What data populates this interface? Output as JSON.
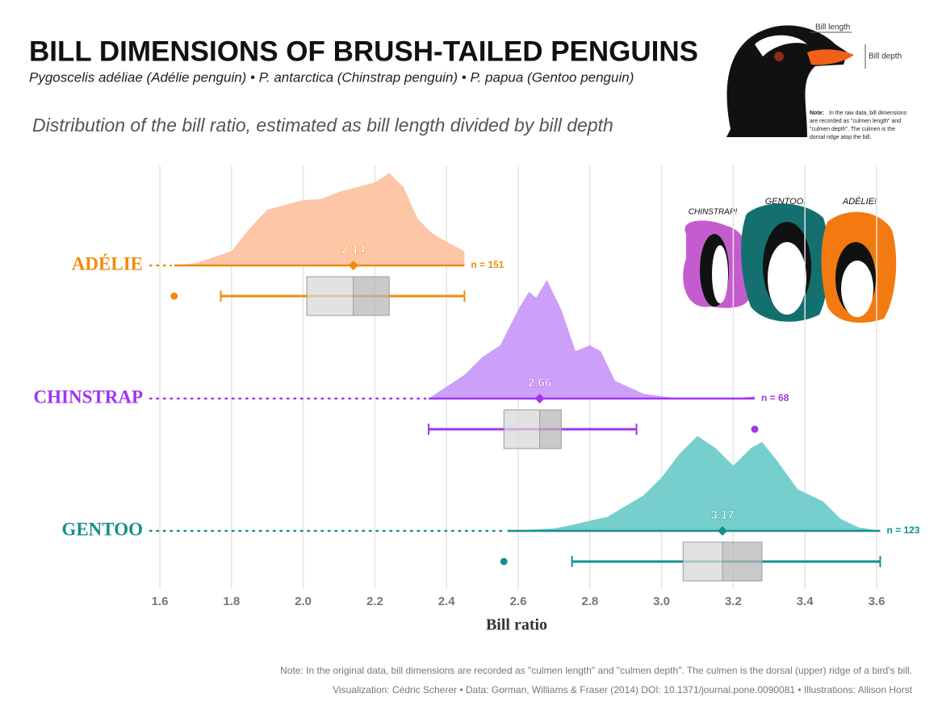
{
  "chart_data": {
    "type": "raincloud",
    "title": "BILL DIMENSIONS OF BRUSH-TAILED PENGUINS",
    "subtitle": "Pygoscelis adéliae (Adélie penguin) • P. antarctica (Chinstrap penguin) • P. papua (Gentoo penguin)",
    "description": "Distribution of the bill ratio, estimated as bill length divided by bill depth",
    "xlabel": "Bill ratio",
    "xlim": [
      1.55,
      3.65
    ],
    "xticks": [
      1.6,
      1.8,
      {
        "value": 2,
        "label": "2.0"
      },
      2.2,
      2.4,
      2.6,
      2.8,
      {
        "value": 3,
        "label": "3.0"
      },
      3.2,
      3.4,
      3.6
    ],
    "grid": true,
    "groups": [
      {
        "name": "ADÉLIE",
        "color": "#F28A0C",
        "fill": "#FDC6A6",
        "median": 2.14,
        "q1": 2.01,
        "q3": 2.24,
        "whisker_low": 1.77,
        "whisker_high": 2.45,
        "outliers": [
          1.64
        ],
        "n_label": "n = 151",
        "density": {
          "x": [
            1.64,
            1.7,
            1.8,
            1.85,
            1.9,
            1.95,
            2.0,
            2.05,
            2.1,
            2.15,
            2.2,
            2.24,
            2.28,
            2.32,
            2.36,
            2.4,
            2.45
          ],
          "y": [
            0,
            0.02,
            0.12,
            0.31,
            0.47,
            0.51,
            0.55,
            0.56,
            0.62,
            0.66,
            0.7,
            0.78,
            0.66,
            0.39,
            0.27,
            0.2,
            0.12
          ]
        }
      },
      {
        "name": "CHINSTRAP",
        "color": "#A034F0",
        "fill": "#CCA0F8",
        "median": 2.66,
        "q1": 2.56,
        "q3": 2.72,
        "whisker_low": 2.35,
        "whisker_high": 2.93,
        "outliers": [
          3.26
        ],
        "n_label": "n = 68",
        "density": {
          "x": [
            2.35,
            2.45,
            2.5,
            2.55,
            2.6,
            2.63,
            2.65,
            2.68,
            2.72,
            2.76,
            2.8,
            2.83,
            2.87,
            2.95,
            3.05,
            3.2,
            3.26
          ],
          "y": [
            0,
            0.2,
            0.35,
            0.45,
            0.75,
            0.9,
            0.85,
            1.0,
            0.75,
            0.4,
            0.45,
            0.4,
            0.15,
            0.04,
            0,
            0,
            0.02
          ]
        }
      },
      {
        "name": "GENTOO",
        "color": "#178E8E",
        "fill": "#76CFCD",
        "median": 3.17,
        "q1": 3.06,
        "q3": 3.28,
        "whisker_low": 2.75,
        "whisker_high": 3.61,
        "outliers": [
          2.56
        ],
        "n_label": "n = 123",
        "density": {
          "x": [
            2.57,
            2.7,
            2.75,
            2.85,
            2.95,
            3.0,
            3.05,
            3.1,
            3.15,
            3.2,
            3.25,
            3.28,
            3.32,
            3.38,
            3.45,
            3.5,
            3.55,
            3.61
          ],
          "y": [
            0,
            0.02,
            0.05,
            0.12,
            0.3,
            0.45,
            0.65,
            0.8,
            0.7,
            0.55,
            0.7,
            0.75,
            0.6,
            0.35,
            0.25,
            0.1,
            0.03,
            0
          ]
        }
      }
    ],
    "illustration": {
      "bill_length": "Bill length",
      "bill_depth": "Bill depth",
      "note_head": "Note:",
      "note": [
        "In the raw data, bill dimensions",
        "are recorded as \"culmen length\" and",
        "\"culmen depth\". The culmen is the",
        "dorsal ridge atop the bill."
      ],
      "penguins": [
        "CHINSTRAP!",
        "GENTOO!",
        "ADÉLIE!"
      ]
    },
    "caption": [
      "Note: In the original data, bill dimensions are recorded as \"culmen length\" and \"culmen depth\". The culmen is the dorsal (upper) ridge of a bird's bill.",
      "Visualization: Cédric Scherer • Data: Gorman, Williams & Fraser (2014) DOI: 10.1371/journal.pone.0090081 • Illustrations: Allison Horst"
    ]
  }
}
